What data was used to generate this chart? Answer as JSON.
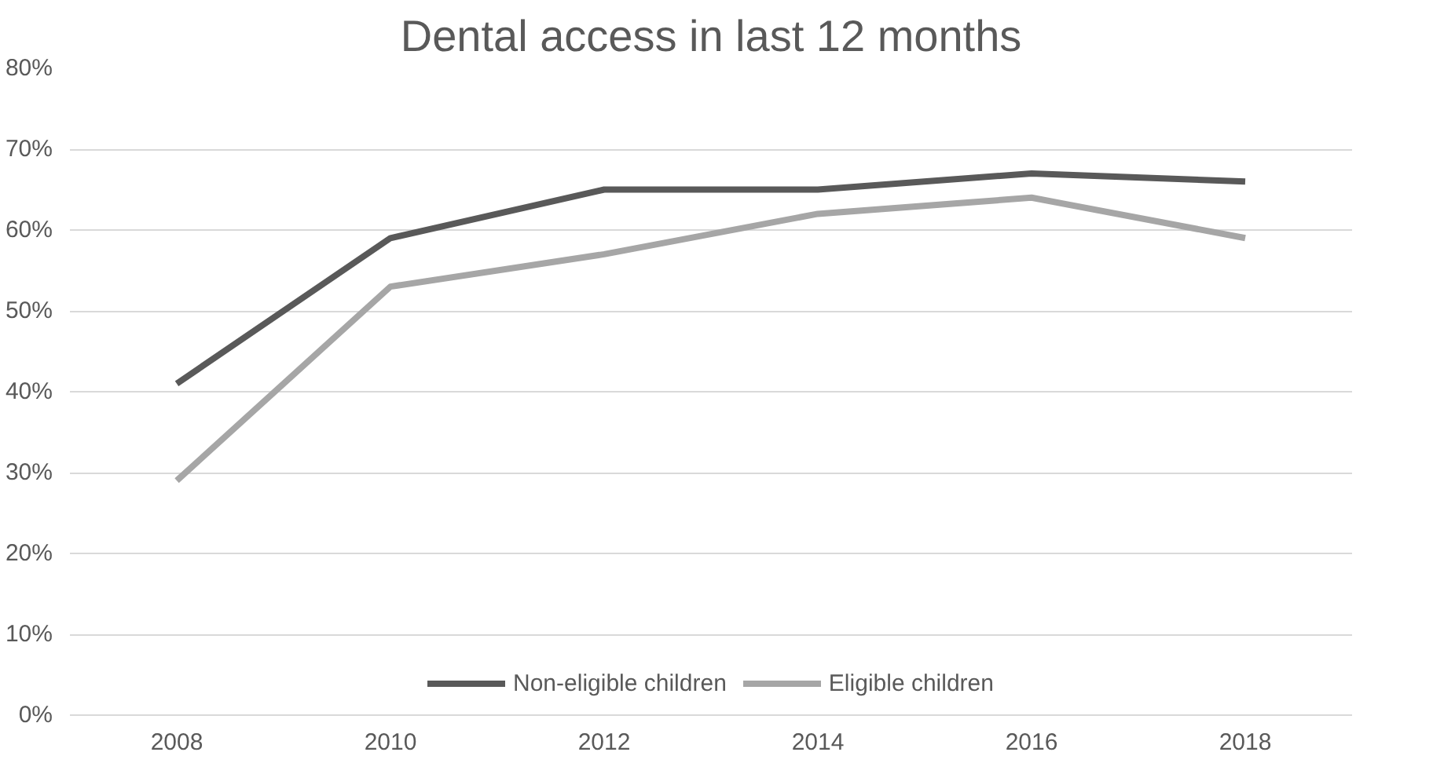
{
  "chart_data": {
    "type": "line",
    "title": "Dental access in last 12 months",
    "categories": [
      "2008",
      "2010",
      "2012",
      "2014",
      "2016",
      "2018"
    ],
    "series": [
      {
        "name": "Non-eligible children",
        "color": "#595959",
        "values": [
          41,
          59,
          65,
          65,
          67,
          66
        ]
      },
      {
        "name": "Eligible children",
        "color": "#a6a6a6",
        "values": [
          29,
          53,
          57,
          62,
          64,
          59
        ]
      }
    ],
    "ylim": [
      0,
      80
    ],
    "yticks": [
      {
        "value": 0,
        "label": "0%"
      },
      {
        "value": 10,
        "label": "10%"
      },
      {
        "value": 20,
        "label": "20%"
      },
      {
        "value": 30,
        "label": "30%"
      },
      {
        "value": 40,
        "label": "40%"
      },
      {
        "value": 50,
        "label": "50%"
      },
      {
        "value": 60,
        "label": "60%"
      },
      {
        "value": 70,
        "label": "70%"
      },
      {
        "value": 80,
        "label": "80%"
      }
    ],
    "grid": "y",
    "legend": "bottom",
    "marker": "none",
    "line_style": "solid"
  }
}
